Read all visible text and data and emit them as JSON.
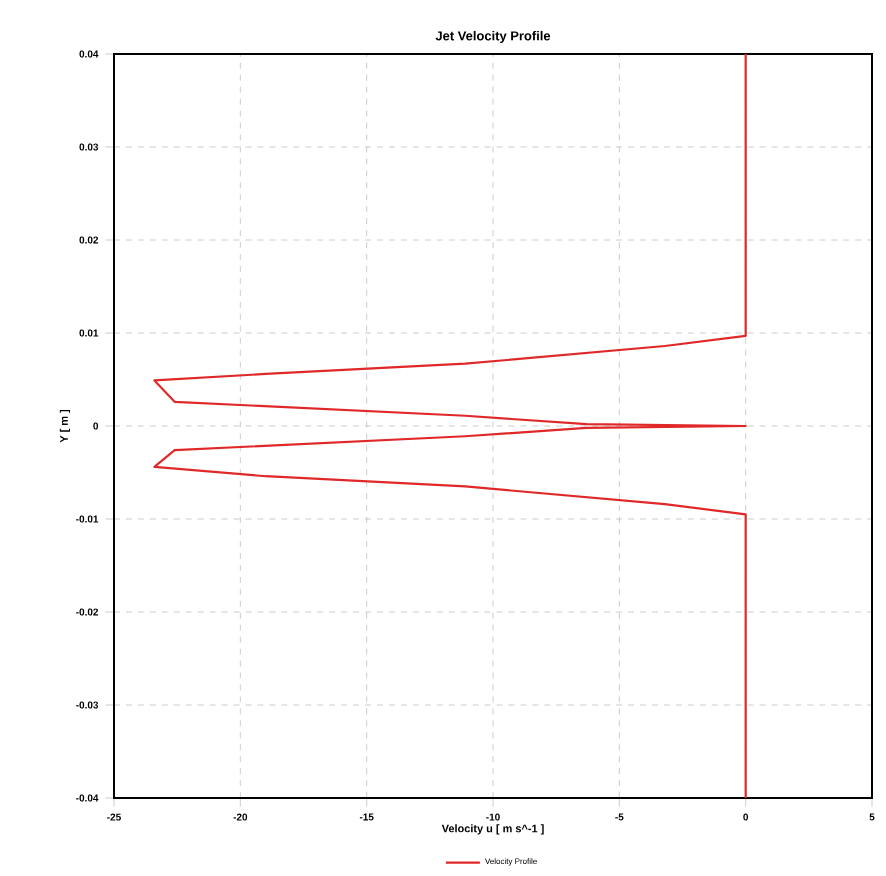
{
  "chart_data": {
    "type": "line",
    "title": "Jet Velocity Profile",
    "xlabel": "Velocity u [ m s^-1 ]",
    "ylabel": "Y [ m ]",
    "series": [
      {
        "name": "Velocity Profile",
        "color": "#e02828",
        "x": [
          0,
          0,
          -3.2,
          -11.1,
          -19,
          -23.4,
          -22.6,
          -11.1,
          -6.3,
          0,
          -6.3,
          -11.1,
          -22.6,
          -23.4,
          -19,
          -11.1,
          -3.2,
          0,
          0
        ],
        "values": [
          0.04,
          0.0097,
          0.0086,
          0.0067,
          0.0056,
          0.0049,
          0.0026,
          0.0011,
          0.0002,
          0,
          -0.0002,
          -0.0011,
          -0.0026,
          -0.0044,
          -0.0054,
          -0.0065,
          -0.0084,
          -0.0095,
          -0.04
        ]
      }
    ],
    "xlim": [
      -25,
      5
    ],
    "ylim": [
      -0.04,
      0.04
    ],
    "xticks": [
      -25,
      -20,
      -15,
      -10,
      -5,
      0,
      5
    ],
    "yticks": [
      -0.04,
      -0.03,
      -0.02,
      -0.01,
      0,
      0.01,
      0.02,
      0.03,
      0.04
    ],
    "grid": true,
    "legend": "bottom",
    "line_style": "solid",
    "marker": "none"
  }
}
